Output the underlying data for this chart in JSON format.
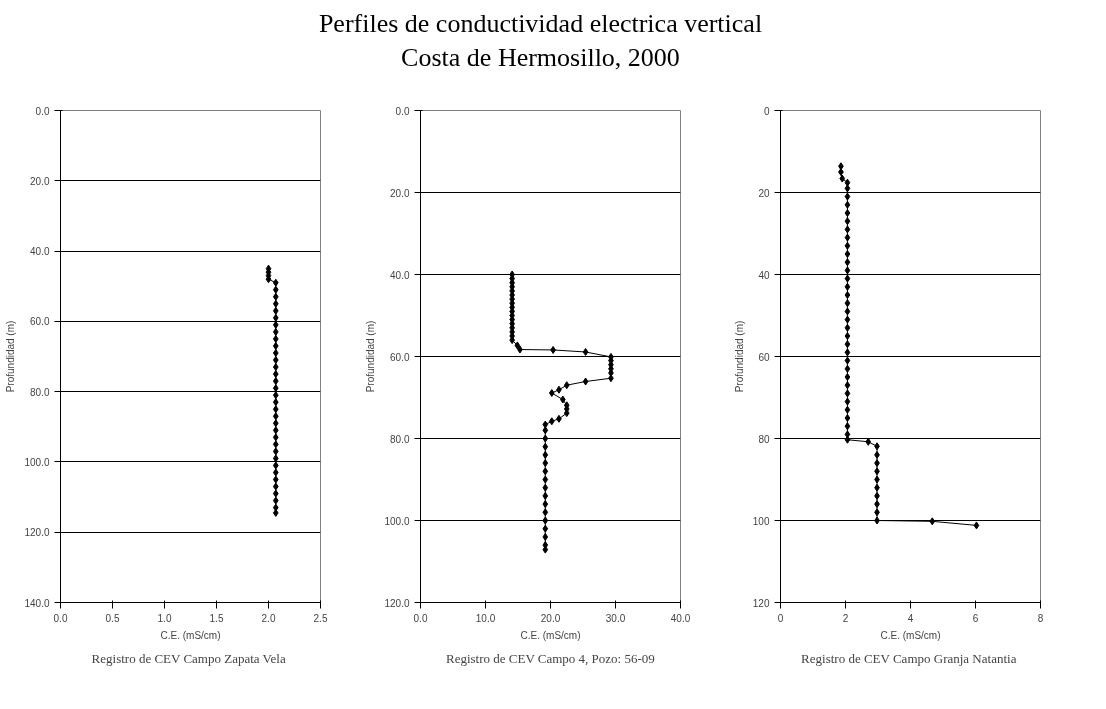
{
  "chart_data": [
    {
      "type": "other",
      "title": "Perfiles de conductividad electrica vertical\nCosta de Hermosillo, 2000"
    },
    {
      "type": "line",
      "xlabel": "C.E. (mS/cm)",
      "ylabel": "Profundidad (m)",
      "marker": "diamond",
      "line_style": "solid",
      "grid": "y",
      "annotations": [
        "Registro de CEV Campo  Zapata Vela"
      ],
      "xlim": [
        0,
        2.5
      ],
      "xticks": [
        {
          "value": 0,
          "label": "0.0"
        },
        0.5,
        {
          "value": 1,
          "label": "1.0"
        },
        1.5,
        {
          "value": 2,
          "label": "2.0"
        },
        2.5
      ],
      "ylim": [
        140,
        0
      ],
      "yticks": [
        {
          "value": 0,
          "label": "0.0"
        },
        {
          "value": 20,
          "label": "20.0"
        },
        {
          "value": 40,
          "label": "40.0"
        },
        {
          "value": 60,
          "label": "60.0"
        },
        {
          "value": 80,
          "label": "80.0"
        },
        {
          "value": 100,
          "label": "100.0"
        },
        {
          "value": 120,
          "label": "120.0"
        },
        {
          "value": 140,
          "label": "140.0"
        }
      ],
      "series": [
        {
          "color": "#000000",
          "x": [
            2.0,
            2.0,
            2.0,
            2.0,
            2.07,
            2.07,
            2.07,
            2.07,
            2.07,
            2.07,
            2.07,
            2.07,
            2.07,
            2.07,
            2.07,
            2.07,
            2.07,
            2.07,
            2.07,
            2.07,
            2.07,
            2.07,
            2.07,
            2.07,
            2.07,
            2.07,
            2.07,
            2.07,
            2.07,
            2.07,
            2.07,
            2.07,
            2.07,
            2.07,
            2.07,
            2.07,
            2.07,
            2.07
          ],
          "values": [
            45,
            46,
            47,
            48,
            49,
            51,
            53,
            55,
            57,
            59,
            61,
            63,
            65,
            67,
            69,
            71,
            73,
            75,
            77,
            79,
            81,
            83,
            85,
            87,
            89,
            91,
            93,
            95,
            97,
            99,
            101,
            103,
            105,
            107,
            109,
            111,
            113,
            114.5
          ]
        }
      ]
    },
    {
      "type": "line",
      "xlabel": "C.E. (mS/cm)",
      "ylabel": "Profundidad (m)",
      "marker": "diamond",
      "line_style": "solid",
      "grid": "y",
      "annotations": [
        "Registro de CEV Campo 4, Pozo: 56-09"
      ],
      "xlim": [
        0,
        40
      ],
      "xticks": [
        {
          "value": 0,
          "label": "0.0"
        },
        {
          "value": 10,
          "label": "10.0"
        },
        {
          "value": 20,
          "label": "20.0"
        },
        {
          "value": 30,
          "label": "30.0"
        },
        {
          "value": 40,
          "label": "40.0"
        }
      ],
      "ylim": [
        120,
        0
      ],
      "yticks": [
        {
          "value": 0,
          "label": "0.0"
        },
        {
          "value": 20,
          "label": "20.0"
        },
        {
          "value": 40,
          "label": "40.0"
        },
        {
          "value": 60,
          "label": "60.0"
        },
        {
          "value": 80,
          "label": "80.0"
        },
        {
          "value": 100,
          "label": "100.0"
        },
        {
          "value": 120,
          "label": "120.0"
        }
      ],
      "series": [
        {
          "color": "#000000",
          "x": [
            14.1,
            14.1,
            14.1,
            14.1,
            14.1,
            14.1,
            14.1,
            14.1,
            14.1,
            14.1,
            14.1,
            14.1,
            14.1,
            14.1,
            14.1,
            14.1,
            14.1,
            14.9,
            15.3,
            20.4,
            25.4,
            29.3,
            29.3,
            29.3,
            29.3,
            29.3,
            29.3,
            25.4,
            22.5,
            21.3,
            20.2,
            21.9,
            22.5,
            22.5,
            22.5,
            21.3,
            20.2,
            19.2,
            19.2,
            19.2,
            19.2,
            19.2,
            19.2,
            19.2,
            19.2,
            19.2,
            19.2,
            19.2,
            19.2,
            19.2,
            19.2,
            19.2,
            19.2,
            19.2
          ],
          "values": [
            40,
            41,
            42,
            43,
            44,
            45,
            46,
            47,
            48,
            49,
            50,
            51,
            52,
            53,
            54,
            55,
            56,
            57.3,
            58.3,
            58.4,
            58.9,
            60.1,
            61,
            62,
            63,
            64,
            65.3,
            66.1,
            67,
            68.1,
            68.9,
            70.5,
            71.9,
            72.8,
            73.8,
            75.2,
            75.8,
            76.6,
            78,
            80,
            82,
            84,
            86,
            88,
            90,
            92,
            94,
            96,
            98,
            100,
            102,
            104,
            106,
            107.1
          ]
        }
      ]
    },
    {
      "type": "line",
      "xlabel": "C.E. (mS/cm)",
      "ylabel": "Profundidad (m)",
      "marker": "diamond",
      "line_style": "solid",
      "grid": "y",
      "annotations": [
        "Registro de CEV  Campo Granja Natantia"
      ],
      "xlim": [
        0,
        8
      ],
      "xticks": [
        0,
        2,
        4,
        6,
        8
      ],
      "ylim": [
        120,
        0
      ],
      "yticks": [
        0,
        20,
        40,
        60,
        80,
        100,
        120
      ],
      "series": [
        {
          "color": "#000000",
          "x": [
            1.86,
            1.86,
            1.9,
            2.06,
            2.06,
            2.06,
            2.06,
            2.06,
            2.06,
            2.06,
            2.06,
            2.06,
            2.06,
            2.06,
            2.06,
            2.06,
            2.06,
            2.06,
            2.06,
            2.06,
            2.06,
            2.06,
            2.06,
            2.06,
            2.06,
            2.06,
            2.06,
            2.06,
            2.06,
            2.06,
            2.06,
            2.06,
            2.06,
            2.06,
            2.06,
            2.06,
            2.7,
            2.97,
            2.97,
            2.97,
            2.97,
            2.97,
            2.97,
            2.97,
            2.97,
            2.97,
            2.97,
            4.67,
            6.03
          ],
          "values": [
            13.6,
            15,
            16.6,
            17.6,
            19,
            21,
            23,
            25,
            27,
            29,
            31,
            33,
            35,
            37,
            39,
            41,
            43,
            45,
            47,
            49,
            51,
            53,
            55,
            57,
            59,
            61,
            63,
            65,
            67,
            69,
            71,
            73,
            75,
            77,
            79,
            80.3,
            80.8,
            81.9,
            84,
            86,
            88,
            90,
            92,
            94,
            96,
            98,
            100,
            100.2,
            101.2
          ]
        }
      ]
    }
  ]
}
